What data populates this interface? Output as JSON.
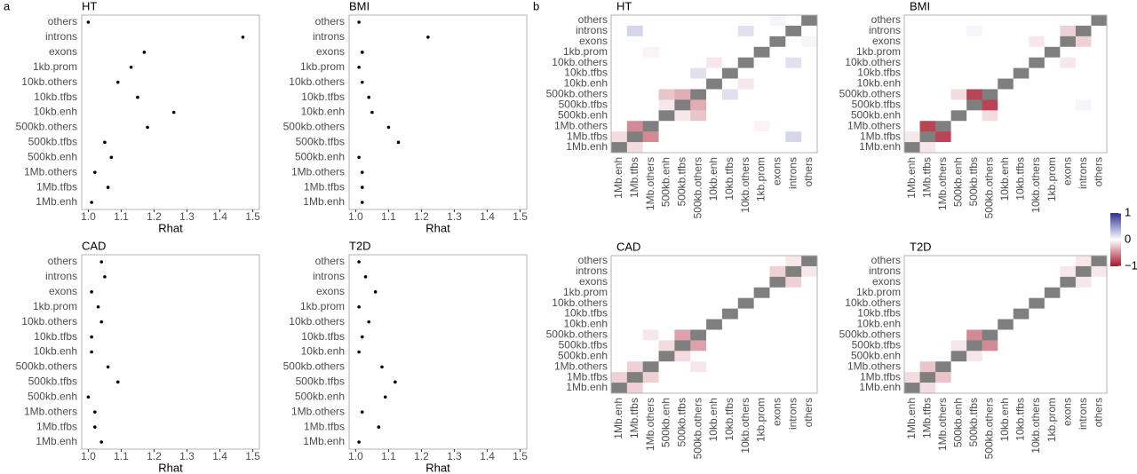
{
  "panel_labels": [
    "a",
    "b"
  ],
  "chart_data": [
    {
      "type": "dot",
      "title": "HT",
      "xlabel": "Rhat",
      "categories": [
        "others",
        "introns",
        "exons",
        "1kb.prom",
        "10kb.others",
        "10kb.tfbs",
        "10kb.enh",
        "500kb.others",
        "500kb.tfbs",
        "500kb.enh",
        "1Mb.others",
        "1Mb.tfbs",
        "1Mb.enh"
      ],
      "values": [
        1.0,
        1.47,
        1.17,
        1.13,
        1.09,
        1.15,
        1.26,
        1.18,
        1.05,
        1.07,
        1.02,
        1.06,
        1.01
      ],
      "color": "#000000",
      "xlim": [
        0.98,
        1.52
      ],
      "xticks": [
        {
          "value": 1,
          "label": "1.0"
        },
        1.1,
        1.2,
        1.3,
        1.4,
        1.5
      ]
    },
    {
      "type": "dot",
      "title": "BMI",
      "xlabel": "Rhat",
      "categories": [
        "others",
        "introns",
        "exons",
        "1kb.prom",
        "10kb.others",
        "10kb.tfbs",
        "10kb.enh",
        "500kb.others",
        "500kb.tfbs",
        "500kb.enh",
        "1Mb.others",
        "1Mb.tfbs",
        "1Mb.enh"
      ],
      "values": [
        1.01,
        1.22,
        1.02,
        1.01,
        1.02,
        1.04,
        1.05,
        1.1,
        1.13,
        1.01,
        1.02,
        1.02,
        1.02
      ],
      "color": "#000000",
      "xlim": [
        0.98,
        1.52
      ],
      "xticks": [
        {
          "value": 1,
          "label": "1.0"
        },
        1.1,
        1.2,
        1.3,
        1.4,
        1.5
      ]
    },
    {
      "type": "dot",
      "title": "CAD",
      "xlabel": "Rhat",
      "categories": [
        "others",
        "introns",
        "exons",
        "1kb.prom",
        "10kb.others",
        "10kb.tfbs",
        "10kb.enh",
        "500kb.others",
        "500kb.tfbs",
        "500kb.enh",
        "1Mb.others",
        "1Mb.tfbs",
        "1Mb.enh"
      ],
      "values": [
        1.04,
        1.05,
        1.01,
        1.03,
        1.04,
        1.01,
        1.01,
        1.06,
        1.09,
        1.0,
        1.02,
        1.02,
        1.04
      ],
      "color": "#000000",
      "xlim": [
        0.98,
        1.52
      ],
      "xticks": [
        {
          "value": 1,
          "label": "1.0"
        },
        1.1,
        1.2,
        1.3,
        1.4,
        1.5
      ]
    },
    {
      "type": "dot",
      "title": "T2D",
      "xlabel": "Rhat",
      "categories": [
        "others",
        "introns",
        "exons",
        "1kb.prom",
        "10kb.others",
        "10kb.tfbs",
        "10kb.enh",
        "500kb.others",
        "500kb.tfbs",
        "500kb.enh",
        "1Mb.others",
        "1Mb.tfbs",
        "1Mb.enh"
      ],
      "values": [
        1.01,
        1.03,
        1.06,
        1.01,
        1.04,
        1.02,
        1.01,
        1.08,
        1.12,
        1.09,
        1.02,
        1.07,
        1.01
      ],
      "color": "#000000",
      "xlim": [
        0.98,
        1.52
      ],
      "xticks": [
        {
          "value": 1,
          "label": "1.0"
        },
        1.1,
        1.2,
        1.3,
        1.4,
        1.5
      ]
    },
    {
      "type": "heatmap",
      "title": "HT",
      "diagonal_color": "#7f7f7f",
      "x_categories": [
        "1Mb.enh",
        "1Mb.tfbs",
        "1Mb.others",
        "500kb.enh",
        "500kb.tfbs",
        "500kb.others",
        "10kb.enh",
        "10kb.tfbs",
        "10kb.others",
        "1kb.prom",
        "exons",
        "introns",
        "others"
      ],
      "y_categories": [
        "others",
        "introns",
        "exons",
        "1kb.prom",
        "10kb.others",
        "10kb.tfbs",
        "10kb.enh",
        "500kb.others",
        "500kb.tfbs",
        "500kb.enh",
        "1Mb.others",
        "1Mb.tfbs",
        "1Mb.enh"
      ],
      "values": [
        [
          0,
          0,
          0,
          0,
          0,
          0,
          0,
          0,
          0,
          0,
          0.05,
          0,
          1
        ],
        [
          0,
          0.2,
          0,
          0,
          0,
          0,
          0,
          0,
          0.15,
          0,
          0,
          1,
          0
        ],
        [
          0,
          0,
          0,
          0,
          0,
          0,
          0,
          0,
          0,
          0,
          1,
          0,
          0.05
        ],
        [
          0,
          0,
          -0.05,
          0,
          0,
          0,
          0,
          0,
          0,
          1,
          0,
          0,
          0
        ],
        [
          0,
          0,
          0,
          0,
          0,
          0,
          -0.1,
          0,
          1,
          0,
          0,
          0.15,
          0
        ],
        [
          0,
          0,
          0,
          0,
          0,
          0.15,
          0,
          1,
          0,
          0,
          0,
          0,
          0
        ],
        [
          0,
          0,
          0,
          0,
          0,
          0,
          1,
          0,
          -0.1,
          0,
          0,
          0,
          0
        ],
        [
          0,
          0,
          0,
          -0.25,
          -0.35,
          1,
          0,
          0.15,
          0,
          0,
          0,
          0,
          0
        ],
        [
          0,
          0,
          0,
          -0.1,
          1,
          -0.35,
          0,
          0,
          0,
          0,
          0,
          0,
          0
        ],
        [
          0,
          0,
          0,
          1,
          -0.1,
          -0.25,
          0,
          0,
          0,
          0,
          0,
          0,
          0
        ],
        [
          0,
          -0.5,
          1,
          0,
          0,
          0,
          0,
          0,
          0,
          -0.05,
          0,
          0,
          0
        ],
        [
          -0.15,
          1,
          -0.5,
          0,
          0,
          0,
          0,
          0,
          0,
          0,
          0,
          0.2,
          0
        ],
        [
          1,
          -0.15,
          0,
          0,
          0,
          0,
          0,
          0,
          0,
          0,
          0,
          0,
          0
        ]
      ]
    },
    {
      "type": "heatmap",
      "title": "BMI",
      "diagonal_color": "#7f7f7f",
      "x_categories": [
        "1Mb.enh",
        "1Mb.tfbs",
        "1Mb.others",
        "500kb.enh",
        "500kb.tfbs",
        "500kb.others",
        "10kb.enh",
        "10kb.tfbs",
        "10kb.others",
        "1kb.prom",
        "exons",
        "introns",
        "others"
      ],
      "y_categories": [
        "others",
        "introns",
        "exons",
        "1kb.prom",
        "10kb.others",
        "10kb.tfbs",
        "10kb.enh",
        "500kb.others",
        "500kb.tfbs",
        "500kb.enh",
        "1Mb.others",
        "1Mb.tfbs",
        "1Mb.enh"
      ],
      "values": [
        [
          0,
          0,
          0,
          0,
          0,
          0,
          0,
          0,
          0,
          0,
          0,
          0,
          1
        ],
        [
          0,
          0,
          0,
          0,
          0.05,
          0,
          0,
          0,
          0,
          0,
          -0.2,
          1,
          0
        ],
        [
          0,
          0,
          0,
          0,
          0,
          0,
          0,
          0,
          -0.1,
          0,
          1,
          -0.2,
          0
        ],
        [
          0,
          0,
          0,
          0,
          0,
          0,
          0,
          0,
          0,
          1,
          0,
          0,
          0
        ],
        [
          0,
          0,
          0,
          0,
          0,
          0,
          0,
          0,
          1,
          0,
          -0.1,
          0,
          0
        ],
        [
          0,
          0,
          0,
          0,
          0,
          0,
          0,
          1,
          0,
          0,
          0,
          0,
          0
        ],
        [
          0,
          0,
          0,
          0,
          0,
          0,
          1,
          0,
          0,
          0,
          0,
          0,
          0
        ],
        [
          0,
          0,
          0,
          -0.15,
          -0.8,
          1,
          0,
          0,
          0,
          0,
          0,
          0,
          0
        ],
        [
          0,
          0,
          0,
          0,
          1,
          -0.8,
          0,
          0,
          0,
          0,
          0,
          0.05,
          0
        ],
        [
          0,
          0,
          0,
          1,
          0,
          -0.15,
          0,
          0,
          0,
          0,
          0,
          0,
          0
        ],
        [
          0,
          -0.8,
          1,
          0,
          0,
          0,
          0,
          0,
          0,
          0,
          0,
          0,
          0
        ],
        [
          -0.1,
          1,
          -0.8,
          0,
          0,
          0,
          0,
          0,
          0,
          0,
          0,
          0,
          0
        ],
        [
          1,
          -0.1,
          0,
          0,
          0,
          0,
          0,
          0,
          0,
          0,
          0,
          0,
          0
        ]
      ]
    },
    {
      "type": "heatmap",
      "title": "CAD",
      "diagonal_color": "#7f7f7f",
      "x_categories": [
        "1Mb.enh",
        "1Mb.tfbs",
        "1Mb.others",
        "500kb.enh",
        "500kb.tfbs",
        "500kb.others",
        "10kb.enh",
        "10kb.tfbs",
        "10kb.others",
        "1kb.prom",
        "exons",
        "introns",
        "others"
      ],
      "y_categories": [
        "others",
        "introns",
        "exons",
        "1kb.prom",
        "10kb.others",
        "10kb.tfbs",
        "10kb.enh",
        "500kb.others",
        "500kb.tfbs",
        "500kb.enh",
        "1Mb.others",
        "1Mb.tfbs",
        "1Mb.enh"
      ],
      "values": [
        [
          0,
          0,
          0,
          0,
          0,
          0,
          0,
          0,
          0,
          0,
          0,
          -0.1,
          1
        ],
        [
          0,
          0,
          0,
          0,
          0,
          0,
          0,
          0,
          0,
          0,
          -0.2,
          1,
          -0.1
        ],
        [
          0,
          0,
          0,
          0,
          0,
          0,
          0,
          0,
          0,
          0,
          1,
          -0.2,
          0
        ],
        [
          0,
          0,
          0,
          0,
          0,
          0,
          0,
          0,
          0,
          1,
          0,
          0,
          0
        ],
        [
          0,
          0,
          0,
          0,
          0,
          0,
          0,
          0,
          1,
          0,
          0,
          0,
          0
        ],
        [
          0,
          0,
          0,
          0,
          0,
          0,
          0,
          1,
          0,
          0,
          0,
          0,
          0
        ],
        [
          0,
          0,
          0,
          0,
          0,
          0,
          1,
          0,
          0,
          0,
          0,
          0,
          0
        ],
        [
          0,
          0,
          -0.1,
          0,
          -0.4,
          1,
          0,
          0,
          0,
          0,
          0,
          0,
          0
        ],
        [
          0,
          0,
          0,
          -0.15,
          1,
          -0.4,
          0,
          0,
          0,
          0,
          0,
          0,
          0
        ],
        [
          0,
          0,
          0,
          1,
          -0.15,
          0,
          0,
          0,
          0,
          0,
          0,
          0,
          0
        ],
        [
          0,
          -0.2,
          1,
          0,
          0,
          -0.1,
          0,
          0,
          0,
          0,
          0,
          0,
          0
        ],
        [
          -0.2,
          1,
          -0.2,
          0,
          0,
          0,
          0,
          0,
          0,
          0,
          0,
          0,
          0
        ],
        [
          1,
          -0.2,
          0,
          0,
          0,
          0,
          0,
          0,
          0,
          0,
          0,
          0,
          0
        ]
      ]
    },
    {
      "type": "heatmap",
      "title": "T2D",
      "diagonal_color": "#7f7f7f",
      "x_categories": [
        "1Mb.enh",
        "1Mb.tfbs",
        "1Mb.others",
        "500kb.enh",
        "500kb.tfbs",
        "500kb.others",
        "10kb.enh",
        "10kb.tfbs",
        "10kb.others",
        "1kb.prom",
        "exons",
        "introns",
        "others"
      ],
      "y_categories": [
        "others",
        "introns",
        "exons",
        "1kb.prom",
        "10kb.others",
        "10kb.tfbs",
        "10kb.enh",
        "500kb.others",
        "500kb.tfbs",
        "500kb.enh",
        "1Mb.others",
        "1Mb.tfbs",
        "1Mb.enh"
      ],
      "values": [
        [
          0,
          0,
          0,
          0,
          0,
          0,
          0,
          0,
          0,
          0,
          0,
          -0.1,
          1
        ],
        [
          0,
          0,
          0,
          0,
          0,
          0,
          0,
          0,
          0,
          0,
          -0.1,
          1,
          -0.1
        ],
        [
          0,
          0,
          0,
          0,
          0,
          0,
          0,
          0,
          0,
          0,
          1,
          -0.1,
          0
        ],
        [
          0,
          0,
          0,
          0,
          0,
          0,
          0,
          0,
          0,
          1,
          0,
          0,
          0
        ],
        [
          0,
          0,
          0,
          0,
          0,
          0,
          0,
          0,
          1,
          0,
          0,
          0,
          0
        ],
        [
          0,
          0,
          0,
          0,
          0,
          0,
          0,
          1,
          0,
          0,
          0,
          0,
          0
        ],
        [
          0,
          0,
          0,
          0,
          0,
          0,
          1,
          0,
          0,
          0,
          0,
          0,
          0
        ],
        [
          0,
          0,
          0,
          0,
          -0.5,
          1,
          0,
          0,
          0,
          0,
          0,
          0,
          0
        ],
        [
          0,
          0,
          0,
          -0.1,
          1,
          -0.5,
          0,
          0,
          0,
          0,
          0,
          0,
          0
        ],
        [
          0,
          0,
          0,
          1,
          -0.1,
          0,
          0,
          0,
          0,
          0,
          0,
          0,
          0
        ],
        [
          0,
          -0.25,
          1,
          0,
          0,
          0,
          0,
          0,
          0,
          0,
          0,
          0,
          0
        ],
        [
          -0.15,
          1,
          -0.25,
          0,
          0,
          0,
          0,
          0,
          0,
          0,
          0,
          0,
          0
        ],
        [
          1,
          -0.15,
          0,
          0,
          0,
          0,
          0,
          0,
          0,
          0,
          0,
          0,
          0
        ]
      ]
    },
    {
      "type": "colorbar",
      "zlim": [
        -1,
        1
      ],
      "ticks": [
        1,
        0,
        {
          "value": -1,
          "label": "−1"
        }
      ],
      "colors": {
        "low": "#a8152b",
        "mid": "#ffffff",
        "high": "#2e3192"
      }
    }
  ]
}
